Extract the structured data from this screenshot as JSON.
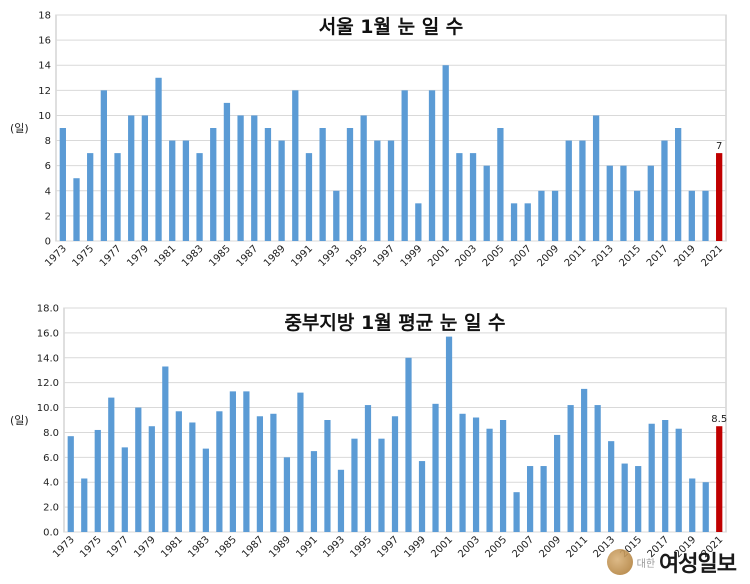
{
  "chart_data": [
    {
      "type": "bar",
      "title": "서울 1월 눈 일 수",
      "ylabel": "(일)",
      "ylim": [
        0,
        18
      ],
      "yticks": [
        "0",
        "2",
        "4",
        "6",
        "8",
        "10",
        "12",
        "14",
        "16",
        "18"
      ],
      "x": [
        1973,
        1974,
        1975,
        1976,
        1977,
        1978,
        1979,
        1980,
        1981,
        1982,
        1983,
        1984,
        1985,
        1986,
        1987,
        1988,
        1989,
        1990,
        1991,
        1992,
        1993,
        1994,
        1995,
        1996,
        1997,
        1998,
        1999,
        2000,
        2001,
        2002,
        2003,
        2004,
        2005,
        2006,
        2007,
        2008,
        2009,
        2010,
        2011,
        2012,
        2013,
        2014,
        2015,
        2016,
        2017,
        2018,
        2019,
        2020,
        2021
      ],
      "xtick_labels": [
        "1973",
        "1975",
        "1977",
        "1979",
        "1981",
        "1983",
        "1985",
        "1987",
        "1989",
        "1991",
        "1993",
        "1995",
        "1997",
        "1999",
        "2001",
        "2003",
        "2005",
        "2007",
        "2009",
        "2011",
        "2013",
        "2015",
        "2017",
        "2019",
        "2021"
      ],
      "values": [
        9,
        5,
        7,
        12,
        7,
        10,
        10,
        13,
        8,
        8,
        7,
        9,
        11,
        10,
        10,
        9,
        8,
        12,
        7,
        9,
        4,
        9,
        10,
        8,
        8,
        12,
        3,
        12,
        14,
        7,
        7,
        6,
        9,
        3,
        3,
        4,
        4,
        8,
        8,
        10,
        6,
        6,
        4,
        6,
        8,
        9,
        4,
        4,
        7
      ],
      "highlight_index": 48,
      "highlight_label": "7",
      "grid": true,
      "bar_color": "#5b9bd5",
      "highlight_color": "#c00000"
    },
    {
      "type": "bar",
      "title": "중부지방 1월 평균 눈 일 수",
      "ylabel": "(일)",
      "ylim": [
        0,
        18
      ],
      "yticks": [
        "0.0",
        "2.0",
        "4.0",
        "6.0",
        "8.0",
        "10.0",
        "12.0",
        "14.0",
        "16.0",
        "18.0"
      ],
      "x": [
        1973,
        1974,
        1975,
        1976,
        1977,
        1978,
        1979,
        1980,
        1981,
        1982,
        1983,
        1984,
        1985,
        1986,
        1987,
        1988,
        1989,
        1990,
        1991,
        1992,
        1993,
        1994,
        1995,
        1996,
        1997,
        1998,
        1999,
        2000,
        2001,
        2002,
        2003,
        2004,
        2005,
        2006,
        2007,
        2008,
        2009,
        2010,
        2011,
        2012,
        2013,
        2014,
        2015,
        2016,
        2017,
        2018,
        2019,
        2020,
        2021
      ],
      "xtick_labels": [
        "1973",
        "1975",
        "1977",
        "1979",
        "1981",
        "1983",
        "1985",
        "1987",
        "1989",
        "1991",
        "1993",
        "1995",
        "1997",
        "1999",
        "2001",
        "2003",
        "2005",
        "2007",
        "2009",
        "2011",
        "2013",
        "2015",
        "2017",
        "2019",
        "2021"
      ],
      "values": [
        7.7,
        4.3,
        8.2,
        10.8,
        6.8,
        10.0,
        8.5,
        13.3,
        9.7,
        8.8,
        6.7,
        9.7,
        11.3,
        11.3,
        9.3,
        9.5,
        6.0,
        11.2,
        6.5,
        9.0,
        5.0,
        7.5,
        10.2,
        7.5,
        9.3,
        14.0,
        5.7,
        10.3,
        15.7,
        9.5,
        9.2,
        8.3,
        9.0,
        3.2,
        5.3,
        5.3,
        7.8,
        10.2,
        11.5,
        10.2,
        7.3,
        5.5,
        5.3,
        8.7,
        9.0,
        8.3,
        4.3,
        4.0,
        8.5
      ],
      "highlight_index": 48,
      "highlight_label": "8.5",
      "grid": true,
      "bar_color": "#5b9bd5",
      "highlight_color": "#c00000"
    }
  ],
  "watermark": {
    "small_text": "대한",
    "name": "여성일보"
  }
}
